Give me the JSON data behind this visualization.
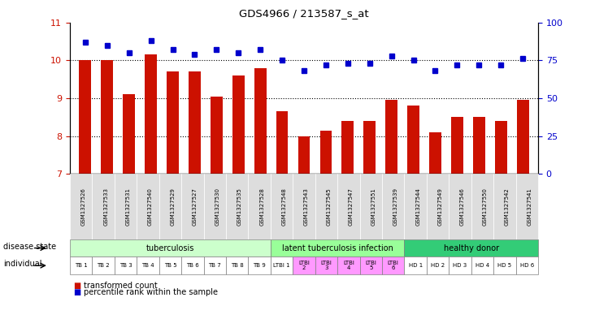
{
  "title": "GDS4966 / 213587_s_at",
  "samples": [
    "GSM1327526",
    "GSM1327533",
    "GSM1327531",
    "GSM1327540",
    "GSM1327529",
    "GSM1327527",
    "GSM1327530",
    "GSM1327535",
    "GSM1327528",
    "GSM1327548",
    "GSM1327543",
    "GSM1327545",
    "GSM1327547",
    "GSM1327551",
    "GSM1327539",
    "GSM1327544",
    "GSM1327549",
    "GSM1327546",
    "GSM1327550",
    "GSM1327542",
    "GSM1327541"
  ],
  "bar_values": [
    10.0,
    10.0,
    9.1,
    10.15,
    9.7,
    9.7,
    9.05,
    9.6,
    9.8,
    8.65,
    8.0,
    8.15,
    8.4,
    8.4,
    8.95,
    8.8,
    8.1,
    8.5,
    8.5,
    8.4,
    8.95
  ],
  "dot_values": [
    87,
    85,
    80,
    88,
    82,
    79,
    82,
    80,
    82,
    75,
    68,
    72,
    73,
    73,
    78,
    75,
    68,
    72,
    72,
    72,
    76
  ],
  "bar_color": "#cc1100",
  "dot_color": "#0000cc",
  "ylim_left": [
    7,
    11
  ],
  "ylim_right": [
    0,
    100
  ],
  "yticks_left": [
    7,
    8,
    9,
    10,
    11
  ],
  "yticks_right": [
    0,
    25,
    50,
    75,
    100
  ],
  "disease_groups": [
    {
      "label": "tuberculosis",
      "start": 0,
      "end": 9,
      "color": "#ccffcc"
    },
    {
      "label": "latent tuberculosis infection",
      "start": 9,
      "end": 15,
      "color": "#99ff99"
    },
    {
      "label": "healthy donor",
      "start": 15,
      "end": 21,
      "color": "#33cc77"
    }
  ],
  "individual_labels": [
    "TB 1",
    "TB 2",
    "TB 3",
    "TB 4",
    "TB 5",
    "TB 6",
    "TB 7",
    "TB 8",
    "TB 9",
    "LTBI 1",
    "LTBI\n2",
    "LTBI\n3",
    "LTBI\n4",
    "LTBI\n5",
    "LTBI\n6",
    "HD 1",
    "HD 2",
    "HD 3",
    "HD 4",
    "HD 5",
    "HD 6"
  ],
  "individual_colors": [
    "#ffffff",
    "#ffffff",
    "#ffffff",
    "#ffffff",
    "#ffffff",
    "#ffffff",
    "#ffffff",
    "#ffffff",
    "#ffffff",
    "#ffffff",
    "#ff99ff",
    "#ff99ff",
    "#ff99ff",
    "#ff99ff",
    "#ff99ff",
    "#ffffff",
    "#ffffff",
    "#ffffff",
    "#ffffff",
    "#ffffff",
    "#ffffff"
  ],
  "sample_box_color": "#dddddd",
  "legend_bar_label": "transformed count",
  "legend_dot_label": "percentile rank within the sample",
  "disease_state_label": "disease state",
  "individual_label": "individual",
  "bg_color": "#ffffff"
}
